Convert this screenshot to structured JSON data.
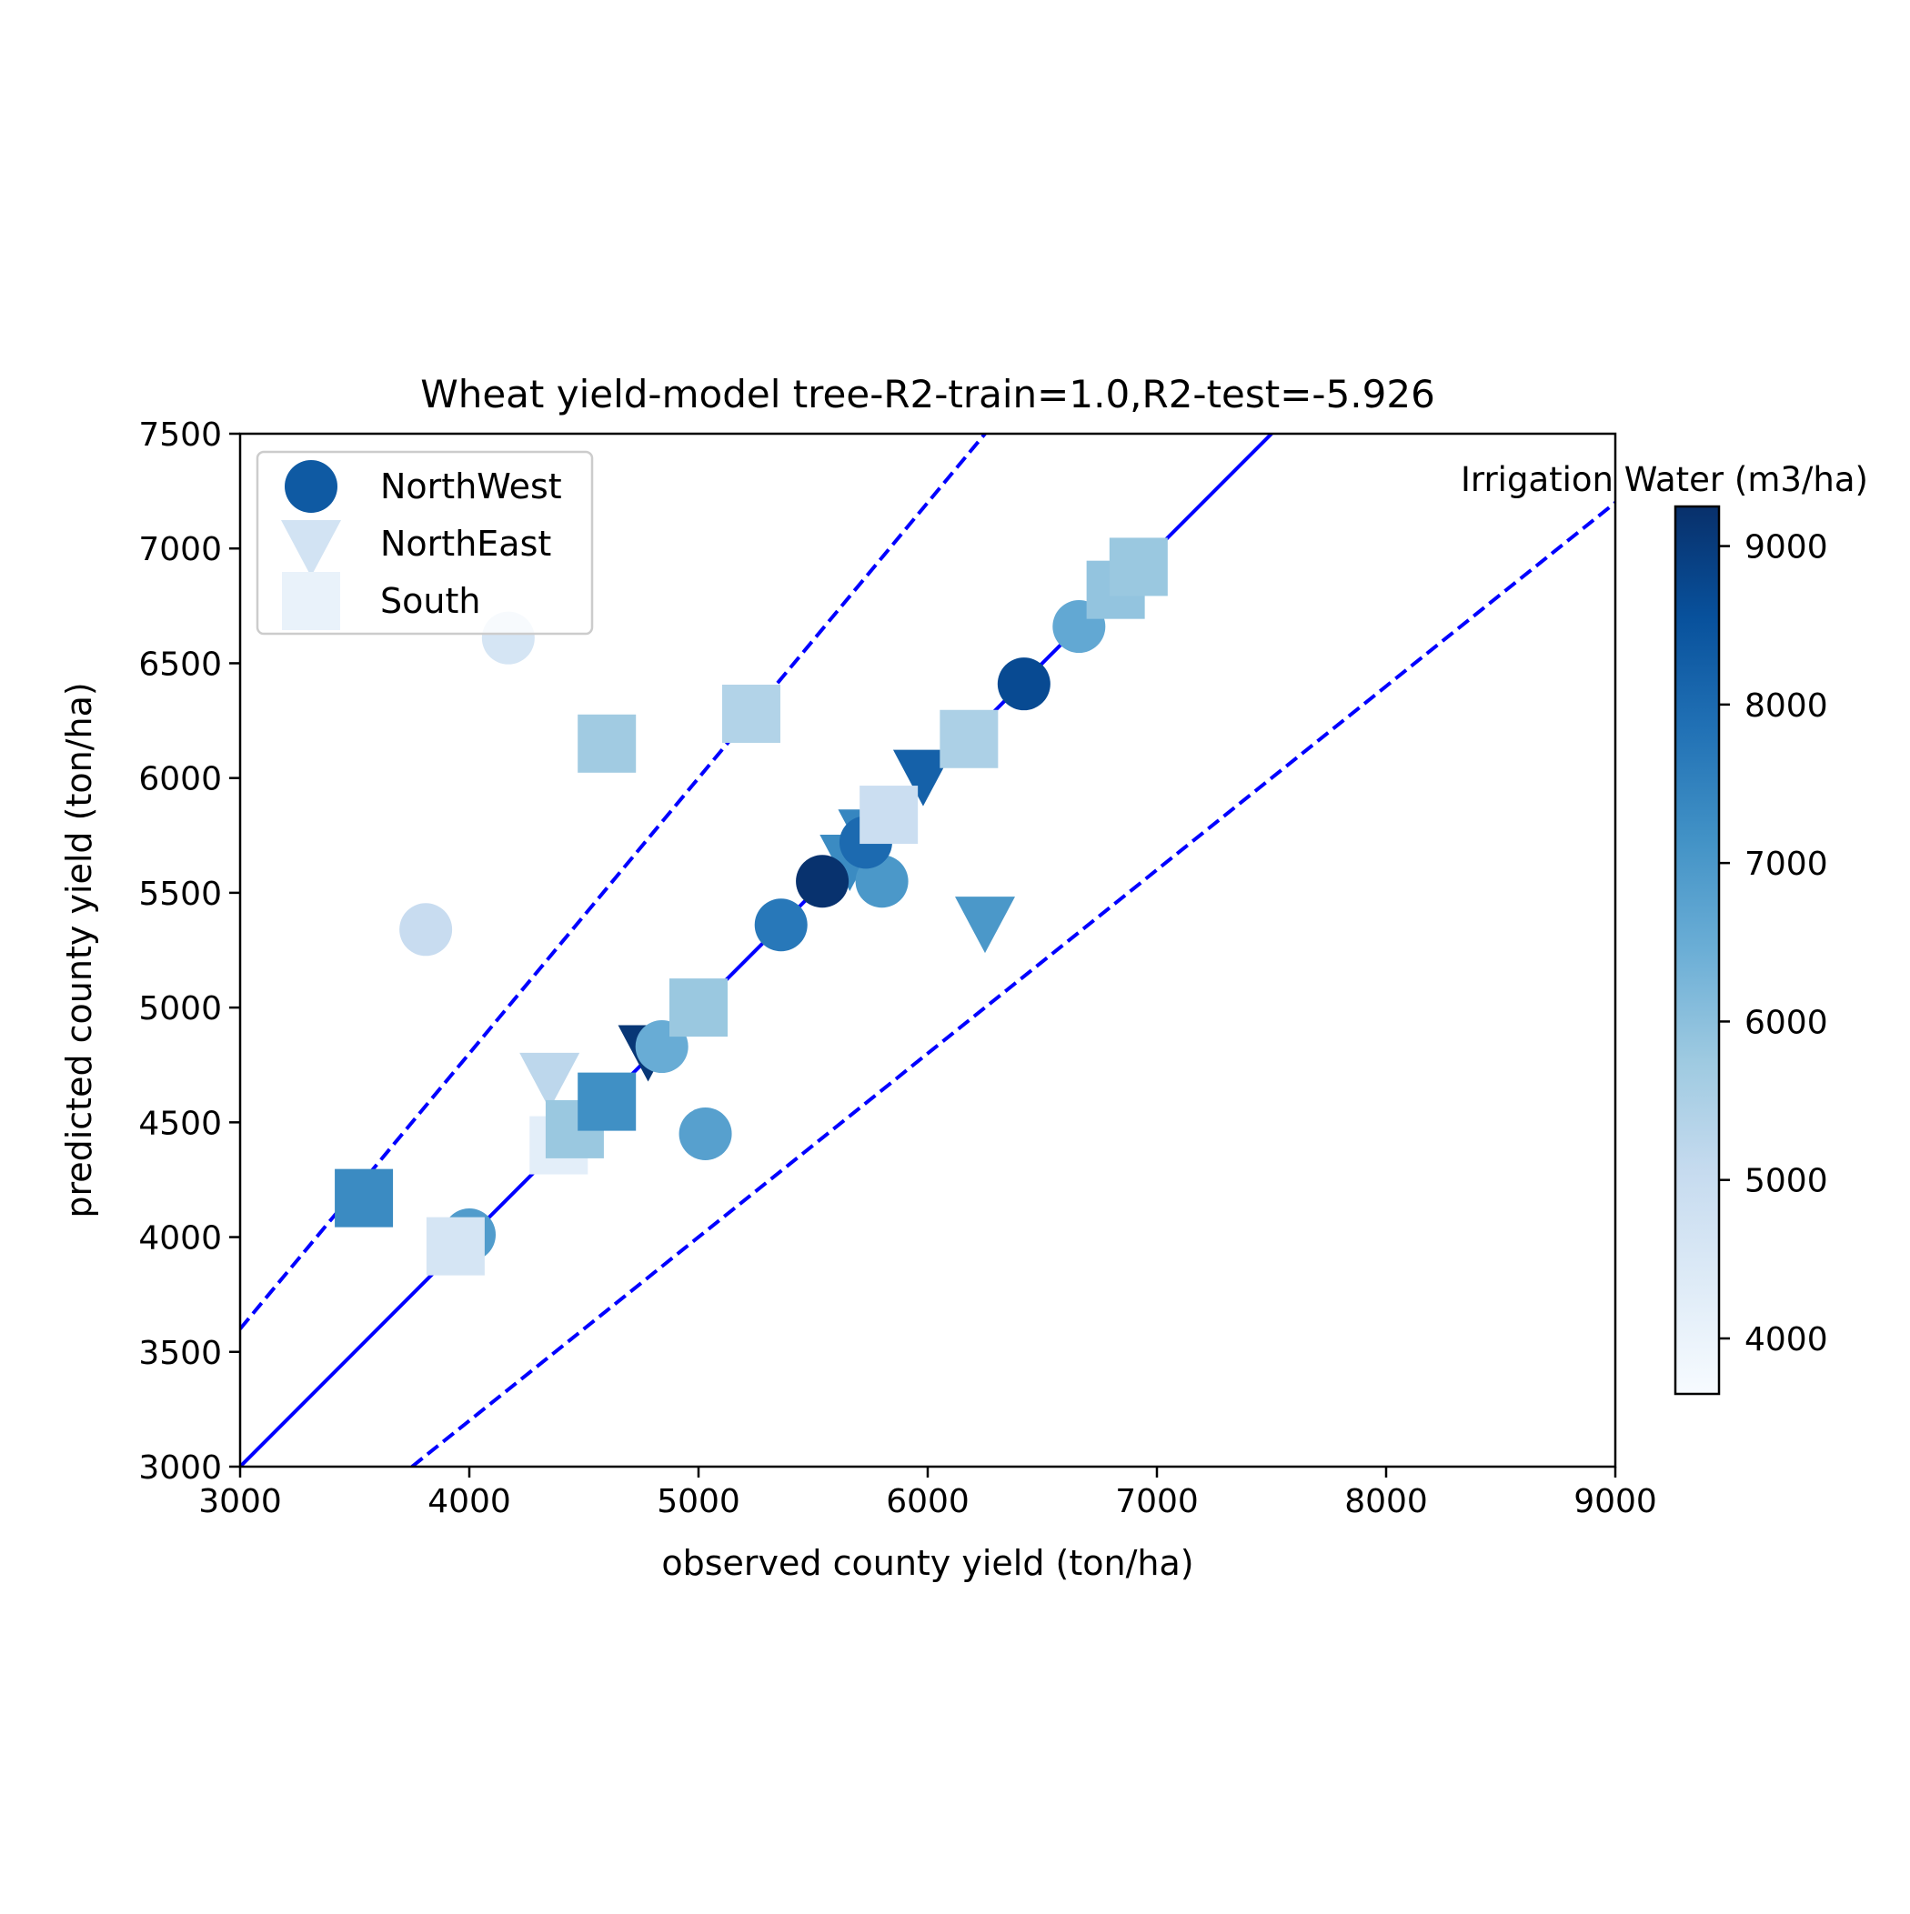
{
  "chart_data": {
    "type": "scatter",
    "title": "Wheat yield-model tree-R2-train=1.0,R2-test=-5.926",
    "xlabel": "observed county yield (ton/ha)",
    "ylabel": "predicted county yield (ton/ha)",
    "xlim": [
      3000,
      9000
    ],
    "ylim": [
      3000,
      7500
    ],
    "xticks": [
      "3000",
      "4000",
      "5000",
      "6000",
      "7000",
      "8000",
      "9000"
    ],
    "yticks": [
      "3000",
      "3500",
      "4000",
      "4500",
      "5000",
      "5500",
      "6000",
      "6500",
      "7000",
      "7500"
    ],
    "legend_position": "upper-left",
    "colorbar": {
      "label": "Irrigation Water (m3/ha)",
      "range": [
        3650,
        9250
      ],
      "ticks": [
        "4000",
        "5000",
        "6000",
        "7000",
        "8000",
        "9000"
      ],
      "colormap": [
        "#f7fbff",
        "#deebf7",
        "#c6dbef",
        "#9ecae1",
        "#6baed6",
        "#4292c6",
        "#2171b5",
        "#08519c",
        "#08306b"
      ]
    },
    "reference_lines": [
      {
        "style": "solid",
        "color": "#0000ff",
        "slope": 1.0,
        "intercept": 0
      },
      {
        "style": "dashed",
        "color": "#0000ff",
        "slope": 1.2,
        "intercept": 0
      },
      {
        "style": "dashed",
        "color": "#0000ff",
        "slope": 0.8,
        "intercept": 0
      }
    ],
    "series": [
      {
        "name": "NorthWest",
        "marker": "circle",
        "legend_color": "#0f5aa3",
        "points": [
          {
            "x": 4000,
            "y": 4010,
            "c": 6900
          },
          {
            "x": 3810,
            "y": 5340,
            "c": 5000
          },
          {
            "x": 4170,
            "y": 6610,
            "c": 4600
          },
          {
            "x": 5030,
            "y": 4450,
            "c": 6800
          },
          {
            "x": 4840,
            "y": 4830,
            "c": 6500
          },
          {
            "x": 5360,
            "y": 5360,
            "c": 7700
          },
          {
            "x": 5540,
            "y": 5550,
            "c": 9200
          },
          {
            "x": 5800,
            "y": 5550,
            "c": 7000
          },
          {
            "x": 5730,
            "y": 5720,
            "c": 8000
          },
          {
            "x": 6420,
            "y": 6410,
            "c": 8700
          },
          {
            "x": 6660,
            "y": 6660,
            "c": 6600
          }
        ]
      },
      {
        "name": "NorthEast",
        "marker": "triangle-down",
        "legend_color": "#d2e3f3",
        "points": [
          {
            "x": 4350,
            "y": 4700,
            "c": 5200
          },
          {
            "x": 4780,
            "y": 4820,
            "c": 9100
          },
          {
            "x": 5660,
            "y": 5650,
            "c": 7300
          },
          {
            "x": 5740,
            "y": 5760,
            "c": 7400
          },
          {
            "x": 5980,
            "y": 6020,
            "c": 8200
          },
          {
            "x": 6250,
            "y": 5380,
            "c": 7000
          }
        ]
      },
      {
        "name": "South",
        "marker": "square",
        "legend_color": "#e9f2fa",
        "points": [
          {
            "x": 3540,
            "y": 4170,
            "c": 7300
          },
          {
            "x": 3940,
            "y": 3960,
            "c": 4600
          },
          {
            "x": 4390,
            "y": 4400,
            "c": 4200
          },
          {
            "x": 4460,
            "y": 4470,
            "c": 5800
          },
          {
            "x": 4600,
            "y": 4590,
            "c": 7200
          },
          {
            "x": 4600,
            "y": 6150,
            "c": 5700
          },
          {
            "x": 5000,
            "y": 5000,
            "c": 5800
          },
          {
            "x": 5230,
            "y": 6280,
            "c": 5400
          },
          {
            "x": 5830,
            "y": 5840,
            "c": 4900
          },
          {
            "x": 6180,
            "y": 6170,
            "c": 5500
          },
          {
            "x": 6820,
            "y": 6820,
            "c": 5900
          },
          {
            "x": 6920,
            "y": 6920,
            "c": 5800
          }
        ]
      }
    ]
  }
}
